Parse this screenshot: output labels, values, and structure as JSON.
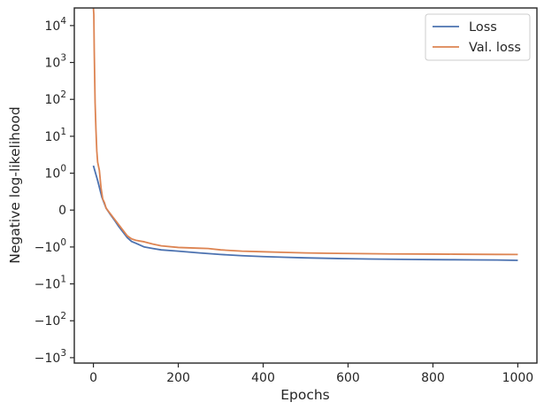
{
  "chart_data": {
    "type": "line",
    "title": "",
    "xlabel": "Epochs",
    "ylabel": "Negative log-likelihood",
    "x_range": [
      -45,
      1045
    ],
    "y_scale": "symlog",
    "y_range": [
      -1400,
      30000
    ],
    "x_ticks": [
      {
        "value": 0,
        "label": "0"
      },
      {
        "value": 200,
        "label": "200"
      },
      {
        "value": 400,
        "label": "400"
      },
      {
        "value": 600,
        "label": "600"
      },
      {
        "value": 800,
        "label": "800"
      },
      {
        "value": 1000,
        "label": "1000"
      }
    ],
    "y_ticks": [
      {
        "value": 10000,
        "base": "10",
        "exp": "4"
      },
      {
        "value": 1000,
        "base": "10",
        "exp": "3"
      },
      {
        "value": 100,
        "base": "10",
        "exp": "2"
      },
      {
        "value": 10,
        "base": "10",
        "exp": "1"
      },
      {
        "value": 1,
        "base": "10",
        "exp": "0"
      },
      {
        "value": 0,
        "base": "0",
        "exp": ""
      },
      {
        "value": -1,
        "base": "−10",
        "exp": "0"
      },
      {
        "value": -10,
        "base": "−10",
        "exp": "1"
      },
      {
        "value": -100,
        "base": "−10",
        "exp": "2"
      },
      {
        "value": -1000,
        "base": "−10",
        "exp": "3"
      }
    ],
    "grid": false,
    "legend_position": "top-right",
    "series": [
      {
        "name": "Loss",
        "color": "#4c72b0",
        "x": [
          0,
          10,
          20,
          30,
          40,
          50,
          60,
          70,
          80,
          90,
          100,
          120,
          140,
          160,
          200,
          250,
          300,
          350,
          400,
          450,
          500,
          550,
          600,
          650,
          700,
          750,
          800,
          850,
          900,
          950,
          1000
        ],
        "y": [
          1.6,
          0.8,
          0.35,
          0.05,
          -0.12,
          -0.28,
          -0.45,
          -0.6,
          -0.75,
          -0.85,
          -0.9,
          -1.0,
          -1.1,
          -1.2,
          -1.3,
          -1.45,
          -1.6,
          -1.72,
          -1.82,
          -1.9,
          -1.97,
          -2.03,
          -2.08,
          -2.12,
          -2.15,
          -2.18,
          -2.2,
          -2.22,
          -2.24,
          -2.26,
          -2.3
        ]
      },
      {
        "name": "Val. loss",
        "color": "#dd8452",
        "x": [
          0,
          1,
          2,
          3,
          4,
          6,
          8,
          10,
          14,
          18,
          22,
          26,
          30,
          40,
          50,
          60,
          70,
          80,
          90,
          100,
          120,
          140,
          160,
          200,
          250,
          270,
          300,
          350,
          400,
          450,
          500,
          550,
          600,
          650,
          700,
          750,
          800,
          850,
          900,
          950,
          1000
        ],
        "y": [
          30000,
          20000,
          2000,
          400,
          80,
          15,
          4,
          2,
          1.2,
          0.6,
          0.3,
          0.2,
          0.05,
          -0.1,
          -0.25,
          -0.4,
          -0.55,
          -0.7,
          -0.78,
          -0.82,
          -0.86,
          -0.92,
          -0.97,
          -1.03,
          -1.08,
          -1.1,
          -1.2,
          -1.3,
          -1.35,
          -1.4,
          -1.45,
          -1.48,
          -1.5,
          -1.52,
          -1.54,
          -1.55,
          -1.56,
          -1.57,
          -1.58,
          -1.59,
          -1.6
        ]
      }
    ]
  }
}
